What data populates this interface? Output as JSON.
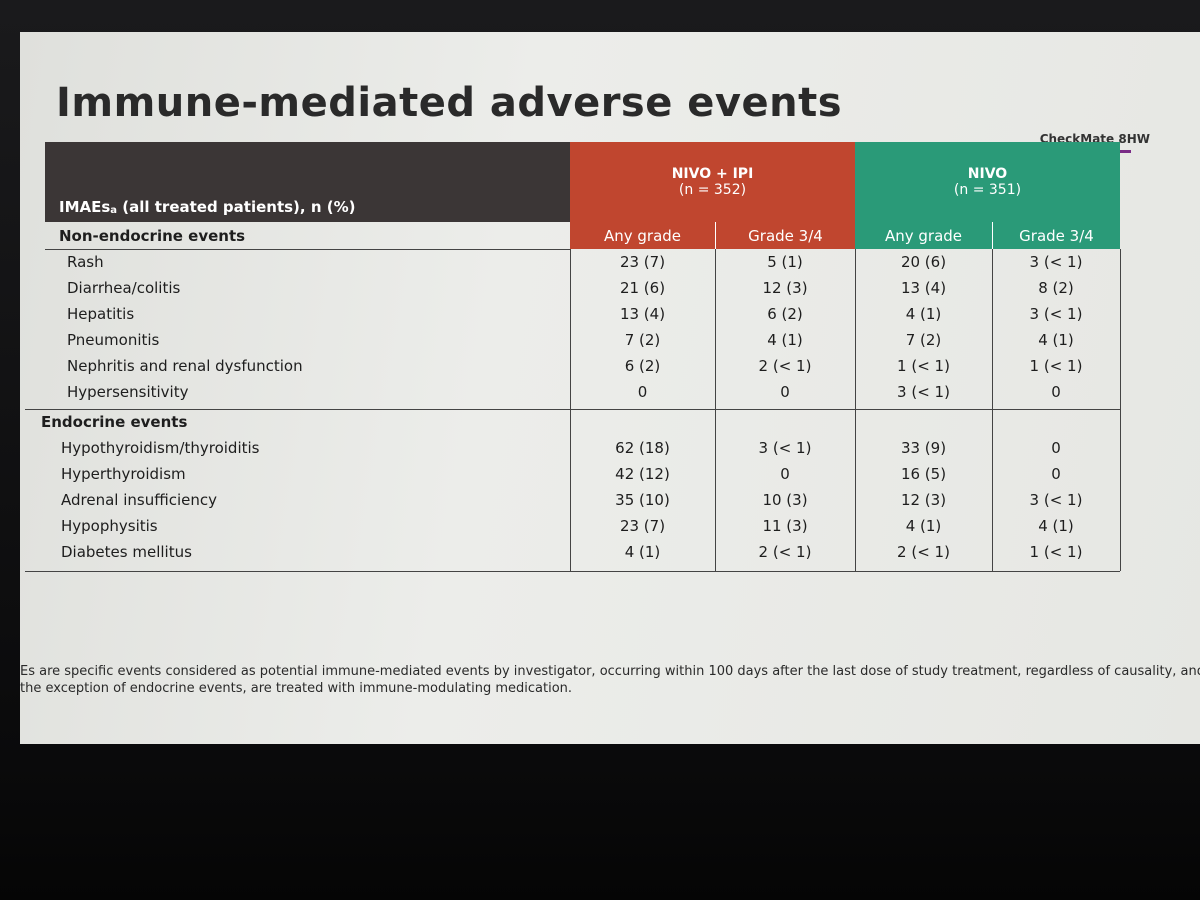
{
  "slide": {
    "title": "Immune-mediated adverse events",
    "brand": "CheckMate 8HW",
    "table": {
      "corner": {
        "text": "IMAEs",
        "sup": "a",
        "rest": " (all treated patients), n (%)"
      },
      "groups": [
        {
          "name": "NIVO + IPI",
          "n": "(n = 352)",
          "columns": [
            "Any grade",
            "Grade 3/4"
          ]
        },
        {
          "name": "NIVO",
          "n": "(n = 351)",
          "columns": [
            "Any grade",
            "Grade 3/4"
          ]
        }
      ],
      "sections": [
        {
          "label": "Non-endocrine events",
          "rows": [
            {
              "event": "Rash",
              "cells": [
                "23 (7)",
                "5 (1)",
                "20 (6)",
                "3 (< 1)"
              ]
            },
            {
              "event": "Diarrhea/colitis",
              "cells": [
                "21 (6)",
                "12 (3)",
                "13 (4)",
                "8 (2)"
              ]
            },
            {
              "event": "Hepatitis",
              "cells": [
                "13 (4)",
                "6 (2)",
                "4 (1)",
                "3 (< 1)"
              ]
            },
            {
              "event": "Pneumonitis",
              "cells": [
                "7 (2)",
                "4 (1)",
                "7 (2)",
                "4 (1)"
              ]
            },
            {
              "event": "Nephritis and renal dysfunction",
              "cells": [
                "6 (2)",
                "2 (< 1)",
                "1 (< 1)",
                "1 (< 1)"
              ]
            },
            {
              "event": "Hypersensitivity",
              "cells": [
                "0",
                "0",
                "3 (< 1)",
                "0"
              ]
            }
          ]
        },
        {
          "label": "Endocrine events",
          "rows": [
            {
              "event": "Hypothyroidism/thyroiditis",
              "cells": [
                "62 (18)",
                "3 (< 1)",
                "33 (9)",
                "0"
              ]
            },
            {
              "event": "Hyperthyroidism",
              "cells": [
                "42 (12)",
                "0",
                "16 (5)",
                "0"
              ]
            },
            {
              "event": "Adrenal insufficiency",
              "cells": [
                "35 (10)",
                "10 (3)",
                "12 (3)",
                "3 (< 1)"
              ]
            },
            {
              "event": "Hypophysitis",
              "cells": [
                "23 (7)",
                "11 (3)",
                "4 (1)",
                "4 (1)"
              ]
            },
            {
              "event": "Diabetes mellitus",
              "cells": [
                "4 (1)",
                "2 (< 1)",
                "2 (< 1)",
                "1 (< 1)"
              ]
            }
          ]
        }
      ]
    },
    "footnote": [
      "Es are specific events considered as potential immune-mediated events by investigator, occurring within 100 days after the last dose of study treatment, regardless of causality, and,",
      "the exception of endocrine events, are treated with immune-modulating medication."
    ]
  }
}
